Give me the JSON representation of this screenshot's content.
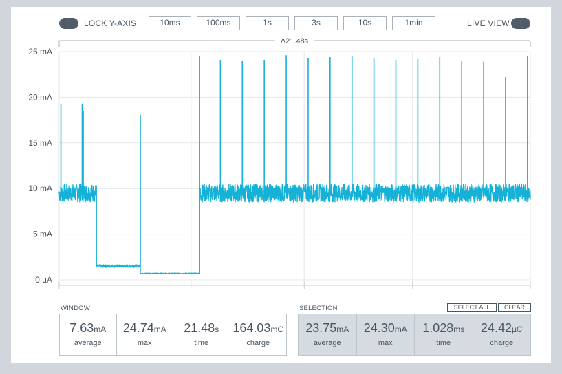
{
  "toolbar": {
    "lock_label": "LOCK Y-AXIS",
    "live_label": "LIVE VIEW",
    "timebases": [
      "10ms",
      "100ms",
      "1s",
      "3s",
      "10s",
      "1min"
    ]
  },
  "range_indicator": "Δ21.48s",
  "chart_data": {
    "type": "line",
    "series": [],
    "yticks": [
      "25 mA",
      "20 mA",
      "15 mA",
      "10 mA",
      "5 mA",
      "0 µA"
    ],
    "ytick_values": [
      25,
      20,
      15,
      10,
      5,
      0
    ],
    "ylim": [
      0,
      25
    ],
    "xlim": [
      0,
      21.48
    ],
    "grid": true,
    "color": "#16b1d6",
    "segments": [
      {
        "t0": 0.0,
        "t1": 1.7,
        "level_mA": 9.5,
        "noise_mA": 1.0
      },
      {
        "t0": 1.7,
        "t1": 3.7,
        "level_mA": 1.5,
        "noise_mA": 0.15
      },
      {
        "t0": 3.7,
        "t1": 6.4,
        "level_mA": 0.7,
        "noise_mA": 0.05
      },
      {
        "t0": 6.4,
        "t1": 21.48,
        "level_mA": 9.5,
        "noise_mA": 1.0
      }
    ],
    "spikes": [
      {
        "t": 0.08,
        "peak_mA": 19.3
      },
      {
        "t": 1.05,
        "peak_mA": 19.3
      },
      {
        "t": 1.1,
        "peak_mA": 18.5
      },
      {
        "t": 3.7,
        "peak_mA": 18.1
      },
      {
        "t": 6.4,
        "peak_mA": 24.5
      },
      {
        "t": 7.35,
        "peak_mA": 24.1
      },
      {
        "t": 8.35,
        "peak_mA": 24.0
      },
      {
        "t": 9.35,
        "peak_mA": 24.1
      },
      {
        "t": 10.35,
        "peak_mA": 24.6
      },
      {
        "t": 11.35,
        "peak_mA": 24.3
      },
      {
        "t": 12.35,
        "peak_mA": 24.4
      },
      {
        "t": 13.35,
        "peak_mA": 24.5
      },
      {
        "t": 14.35,
        "peak_mA": 24.3
      },
      {
        "t": 15.35,
        "peak_mA": 24.1
      },
      {
        "t": 16.35,
        "peak_mA": 24.2
      },
      {
        "t": 17.35,
        "peak_mA": 24.4
      },
      {
        "t": 18.35,
        "peak_mA": 24.0
      },
      {
        "t": 19.35,
        "peak_mA": 23.9
      },
      {
        "t": 20.35,
        "peak_mA": 22.2
      },
      {
        "t": 21.35,
        "peak_mA": 24.5
      }
    ]
  },
  "window": {
    "label": "WINDOW",
    "stats": [
      {
        "value": "7.63",
        "unit": "mA",
        "label": "average"
      },
      {
        "value": "24.74",
        "unit": "mA",
        "label": "max"
      },
      {
        "value": "21.48",
        "unit": "s",
        "label": "time"
      },
      {
        "value": "164.03",
        "unit": "mC",
        "label": "charge"
      }
    ]
  },
  "selection": {
    "label": "SELECTION",
    "select_all": "SELECT ALL",
    "clear": "CLEAR",
    "stats": [
      {
        "value": "23.75",
        "unit": "mA",
        "label": "average"
      },
      {
        "value": "24.30",
        "unit": "mA",
        "label": "max"
      },
      {
        "value": "1.028",
        "unit": "ms",
        "label": "time"
      },
      {
        "value": "24.42",
        "unit": "µC",
        "label": "charge"
      }
    ]
  }
}
